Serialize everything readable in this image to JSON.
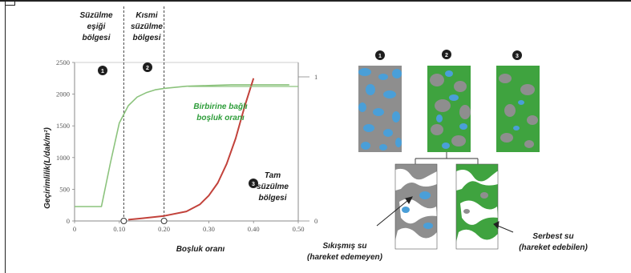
{
  "chart_data": {
    "type": "line",
    "xlabel": "Boşluk oranı",
    "ylabel": "Geçirimlilik(L/dak/m²)",
    "xlim": [
      0,
      0.5
    ],
    "ylim": [
      0,
      2500
    ],
    "y2lim": [
      0,
      1.1
    ],
    "x_ticks": [
      "0",
      "0.10",
      "0.20",
      "0.30",
      "0.40",
      "0.50"
    ],
    "y_ticks": [
      "0",
      "500",
      "1000",
      "1500",
      "2000",
      "2500"
    ],
    "y2_ticks": [
      "0",
      "1"
    ],
    "vlines": [
      0.11,
      0.2
    ],
    "series": [
      {
        "name": "Birbirine bağlı boşluk oranı",
        "color": "#8cc37d",
        "axis": "right",
        "x": [
          0,
          0.02,
          0.04,
          0.06,
          0.08,
          0.1,
          0.12,
          0.14,
          0.16,
          0.18,
          0.2,
          0.25,
          0.3,
          0.35,
          0.4,
          0.45,
          0.48
        ],
        "y": [
          0.1,
          0.1,
          0.1,
          0.1,
          0.4,
          0.68,
          0.8,
          0.86,
          0.89,
          0.91,
          0.92,
          0.935,
          0.94,
          0.945,
          0.945,
          0.945,
          0.945
        ]
      },
      {
        "name": "Geçirimlilik",
        "color": "#c2423b",
        "axis": "left",
        "x": [
          0.12,
          0.15,
          0.2,
          0.25,
          0.28,
          0.3,
          0.32,
          0.34,
          0.36,
          0.38,
          0.4
        ],
        "y": [
          20,
          40,
          80,
          150,
          260,
          400,
          600,
          900,
          1300,
          1800,
          2250
        ]
      }
    ],
    "markers": [
      {
        "x": 0.11,
        "y": 0
      },
      {
        "x": 0.2,
        "y": 0
      }
    ],
    "annotations": {
      "region1": "Süzülme eşiği bölgesi",
      "region2": "Kısmi süzülme bölgesi",
      "region3": "Tam süzülme bölgesi",
      "green_label": "Birbirine bağlı boşluk oranı",
      "badges": [
        "1",
        "2",
        "3"
      ]
    }
  },
  "figure": {
    "sample_badges": [
      "1",
      "2",
      "3"
    ],
    "trapped_water": "Sıkışmış su (hareket edemeyen)",
    "free_water": "Serbest su (hareket edebilen)",
    "colors": {
      "gray": "#8e8e8e",
      "blue": "#4a9fd8",
      "green": "#3fa33f",
      "white": "#ffffff"
    }
  },
  "text": {
    "r1_line1": "Süzülme",
    "r1_line2": "eşiği",
    "r1_line3": "bölgesi",
    "r2_line1": "Kısmi",
    "r2_line2": "süzülme",
    "r2_line3": "bölgesi",
    "r3_line1": "Tam",
    "r3_line2": "süzülme",
    "r3_line3": "bölgesi",
    "green_line1": "Birbirine bağlı",
    "green_line2": "boşluk oranı",
    "trapped_line1": "Sıkışmış su",
    "trapped_line2": "(hareket edemeyen)",
    "free_line1": "Serbest su",
    "free_line2": "(hareket edebilen)"
  }
}
